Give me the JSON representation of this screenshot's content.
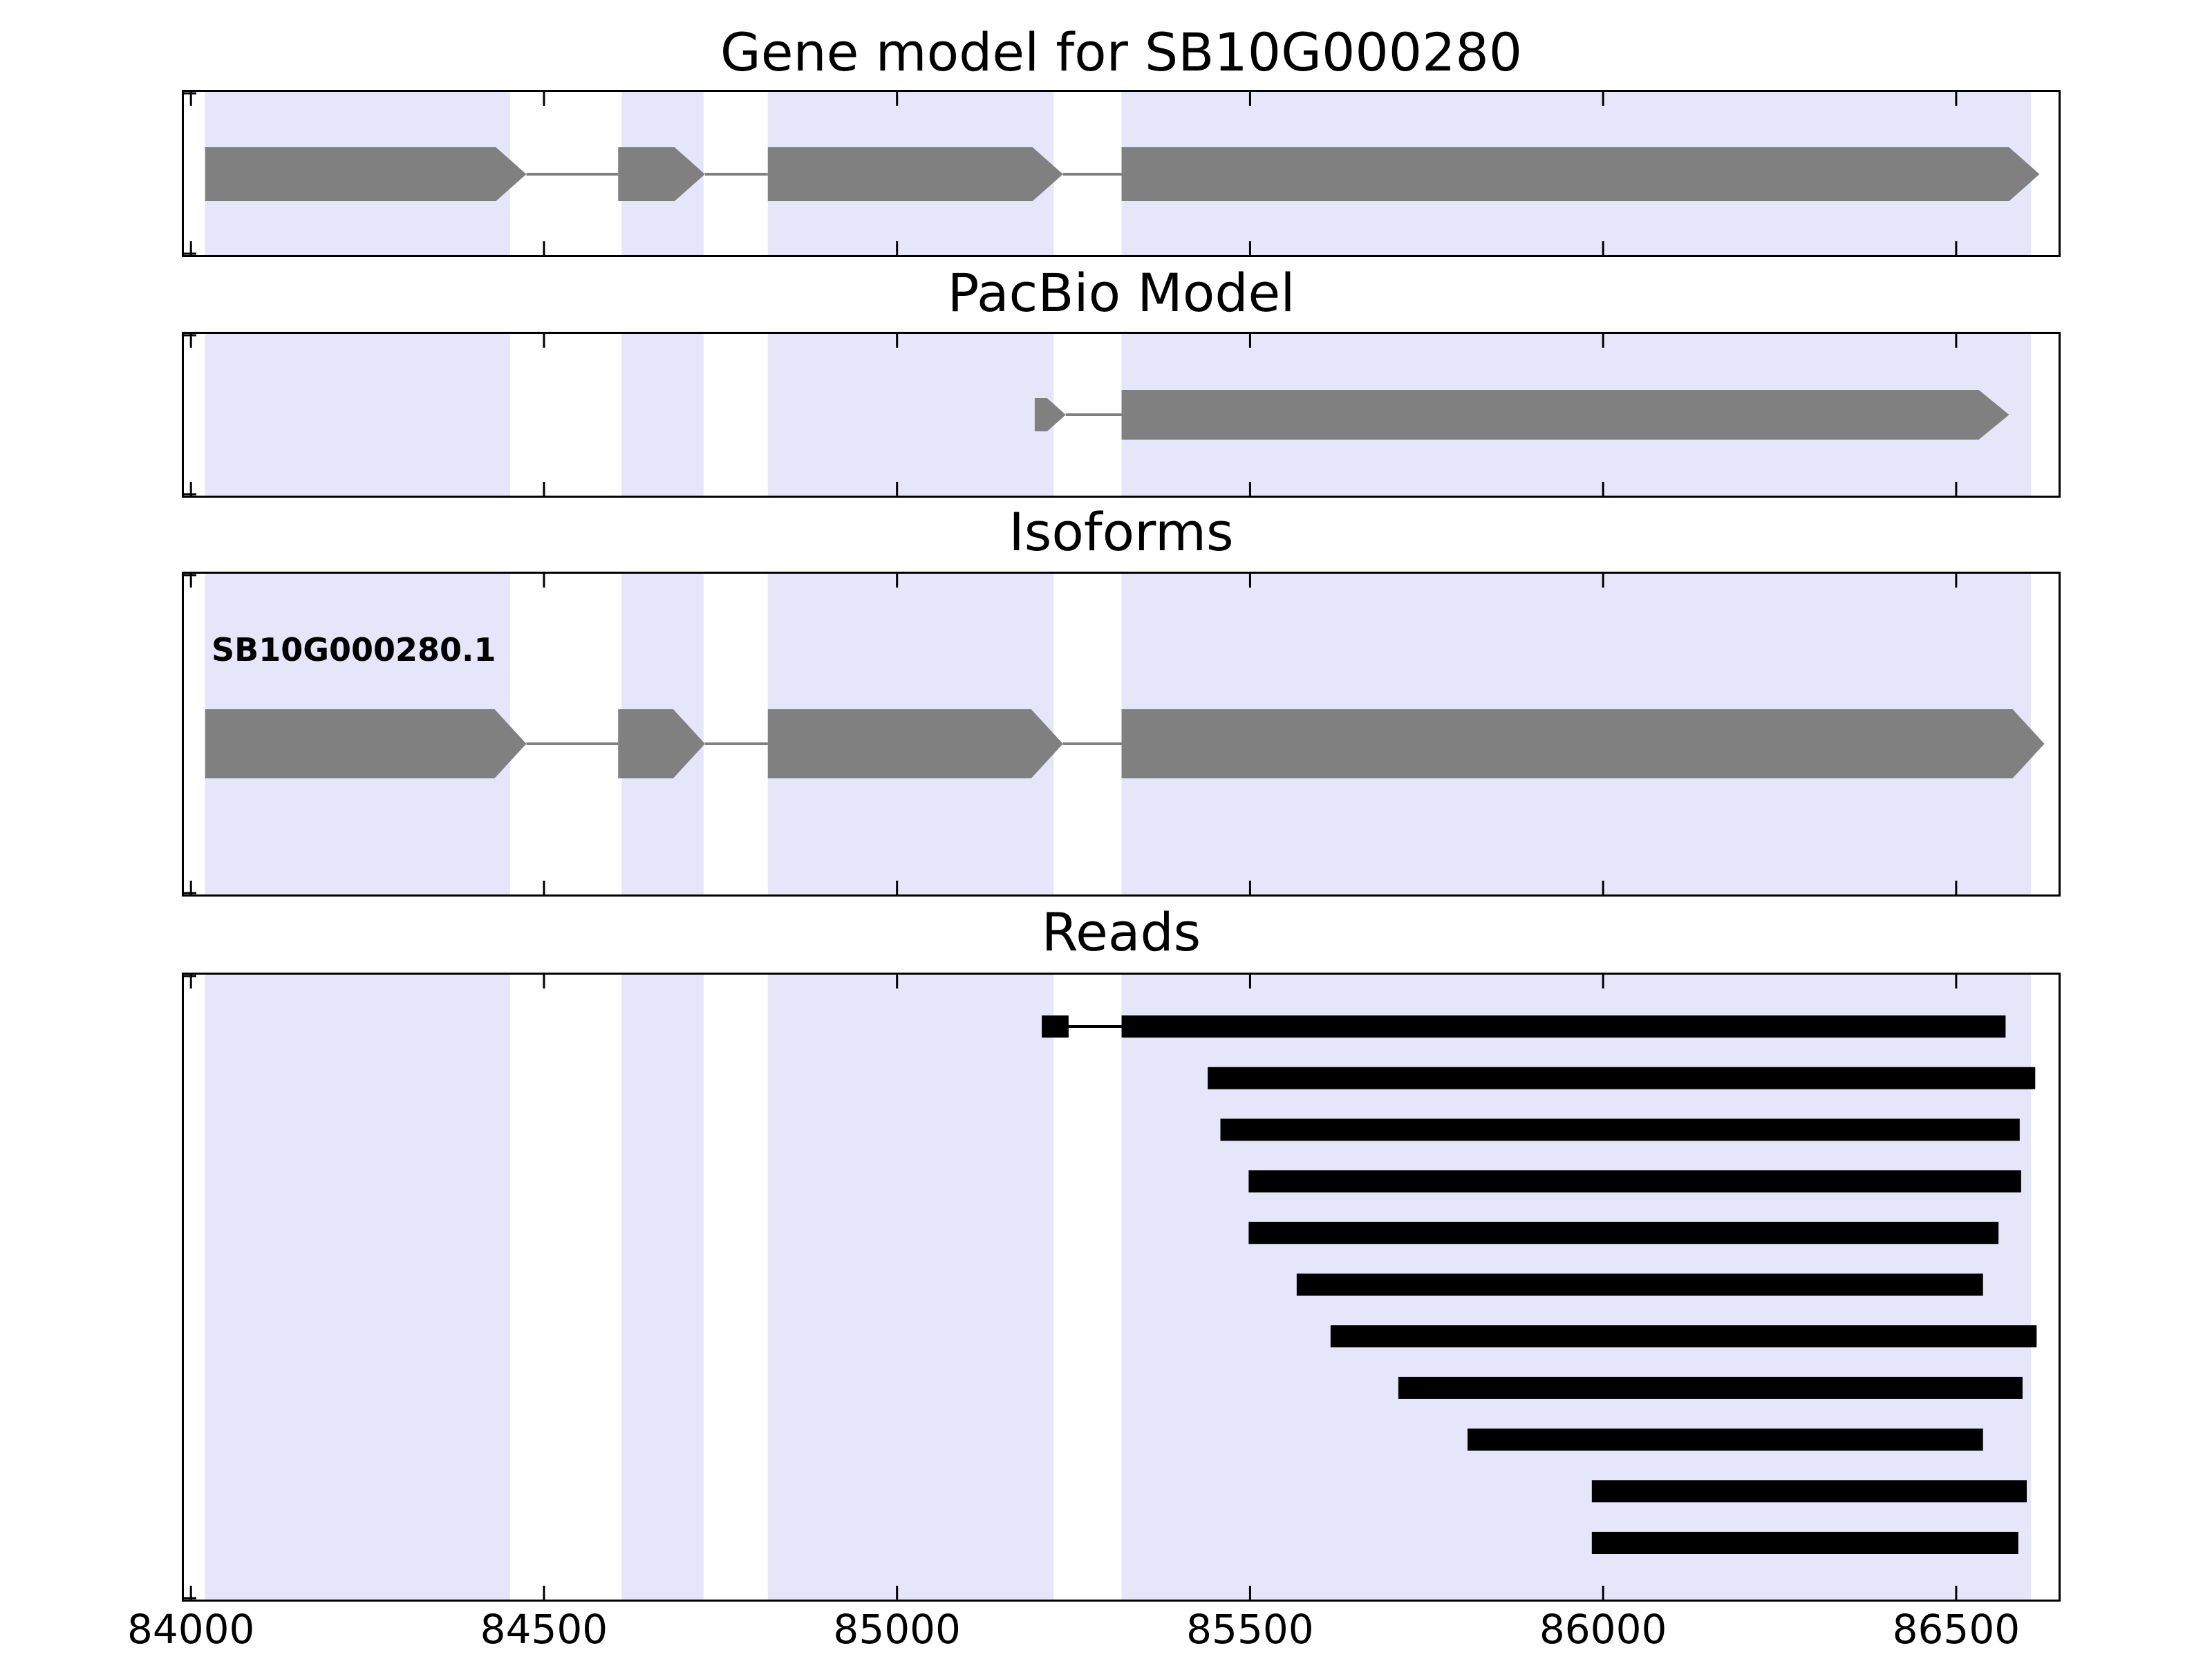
{
  "titles": {
    "gene_model": "Gene model for SB10G000280",
    "pacbio": "PacBio Model",
    "isoforms": "Isoforms",
    "reads": "Reads"
  },
  "colors": {
    "band": "#E6E6FA",
    "feature": "#808080",
    "read": "#000000",
    "border": "#000000",
    "background": "#FFFFFF",
    "text": "#000000"
  },
  "chart_data": {
    "type": "gene-browser",
    "x_axis": {
      "min": 83990,
      "max": 86645,
      "ticks": [
        84000,
        84500,
        85000,
        85500,
        86000,
        86500
      ],
      "tick_labels": [
        "84000",
        "84500",
        "85000",
        "85500",
        "86000",
        "86500"
      ]
    },
    "exon_bands": [
      [
        84020,
        84452
      ],
      [
        84610,
        84726
      ],
      [
        84817,
        85222
      ],
      [
        85318,
        86606
      ]
    ],
    "tracks": [
      {
        "id": "gene_model",
        "title": "Gene model for SB10G000280",
        "strand": "+",
        "exons": [
          [
            84020,
            84475
          ],
          [
            84605,
            84728
          ],
          [
            84817,
            85235
          ],
          [
            85318,
            86618
          ]
        ]
      },
      {
        "id": "pacbio_model",
        "title": "PacBio Model",
        "strand": "+",
        "exons": [
          [
            85195,
            85239
          ],
          [
            85318,
            86575
          ]
        ]
      },
      {
        "id": "isoform",
        "title": "Isoforms",
        "label": "SB10G000280.1",
        "strand": "+",
        "exons": [
          [
            84020,
            84475
          ],
          [
            84605,
            84728
          ],
          [
            84817,
            85235
          ],
          [
            85318,
            86625
          ]
        ]
      }
    ],
    "reads": [
      {
        "segments": [
          [
            85205,
            85243
          ],
          [
            85318,
            86570
          ]
        ]
      },
      {
        "segments": [
          [
            85440,
            86612
          ]
        ]
      },
      {
        "segments": [
          [
            85458,
            86590
          ]
        ]
      },
      {
        "segments": [
          [
            85498,
            86592
          ]
        ]
      },
      {
        "segments": [
          [
            85498,
            86560
          ]
        ]
      },
      {
        "segments": [
          [
            85566,
            86538
          ]
        ]
      },
      {
        "segments": [
          [
            85614,
            86614
          ]
        ]
      },
      {
        "segments": [
          [
            85710,
            86594
          ]
        ]
      },
      {
        "segments": [
          [
            85808,
            86538
          ]
        ]
      },
      {
        "segments": [
          [
            85984,
            86600
          ]
        ]
      },
      {
        "segments": [
          [
            85984,
            86588
          ]
        ]
      }
    ]
  }
}
